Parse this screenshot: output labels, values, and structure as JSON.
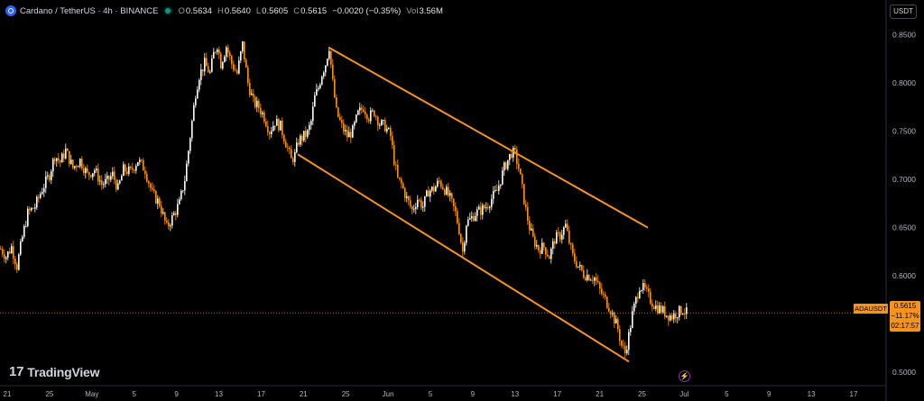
{
  "header": {
    "title": "Cardano / TetherUS · 4h · BINANCE",
    "open_label": "O",
    "open": "0.5634",
    "high_label": "H",
    "high": "0.5640",
    "low_label": "L",
    "low": "0.5605",
    "close_label": "C",
    "close": "0.5615",
    "change": "−0.0020 (−0.35%)",
    "vol_label": "Vol",
    "volume": "3.56M"
  },
  "currency_button": "USDT",
  "price_axis": [
    "0.8500",
    "0.8000",
    "0.7500",
    "0.7000",
    "0.6500",
    "0.6000",
    "0.5500",
    "0.5000"
  ],
  "time_axis": [
    "21",
    "25",
    "May",
    "5",
    "9",
    "13",
    "17",
    "21",
    "25",
    "Jun",
    "5",
    "9",
    "13",
    "17",
    "21",
    "25",
    "Jul",
    "5",
    "9",
    "13",
    "17"
  ],
  "symbol_tag": "ADAUSDT",
  "price_tag": {
    "price": "0.5615",
    "change": "−11.17%",
    "countdown": "02:17:57"
  },
  "brand": "TradingView",
  "brand_mark": "17",
  "bolt_icon": "⚡",
  "colors": {
    "up": "#ffffff",
    "down": "#f7931a",
    "channel": "#f7931a",
    "price_line": "#e65100"
  },
  "chart_data": {
    "type": "candlestick",
    "ylim": [
      0.487,
      0.873
    ],
    "last_price": 0.5615,
    "price_path": [
      [
        0,
        0.628
      ],
      [
        6,
        0.62
      ],
      [
        12,
        0.63
      ],
      [
        18,
        0.61
      ],
      [
        24,
        0.64
      ],
      [
        30,
        0.665
      ],
      [
        38,
        0.672
      ],
      [
        46,
        0.69
      ],
      [
        54,
        0.705
      ],
      [
        60,
        0.725
      ],
      [
        66,
        0.718
      ],
      [
        72,
        0.73
      ],
      [
        80,
        0.712
      ],
      [
        88,
        0.72
      ],
      [
        96,
        0.705
      ],
      [
        104,
        0.71
      ],
      [
        112,
        0.695
      ],
      [
        118,
        0.698
      ],
      [
        124,
        0.705
      ],
      [
        130,
        0.69
      ],
      [
        136,
        0.71
      ],
      [
        144,
        0.708
      ],
      [
        152,
        0.72
      ],
      [
        160,
        0.71
      ],
      [
        168,
        0.685
      ],
      [
        176,
        0.675
      ],
      [
        184,
        0.65
      ],
      [
        190,
        0.66
      ],
      [
        198,
        0.675
      ],
      [
        204,
        0.7
      ],
      [
        208,
        0.73
      ],
      [
        212,
        0.76
      ],
      [
        216,
        0.79
      ],
      [
        220,
        0.808
      ],
      [
        226,
        0.82
      ],
      [
        232,
        0.81
      ],
      [
        236,
        0.83
      ],
      [
        240,
        0.84
      ],
      [
        244,
        0.82
      ],
      [
        250,
        0.838
      ],
      [
        256,
        0.82
      ],
      [
        262,
        0.81
      ],
      [
        268,
        0.84
      ],
      [
        274,
        0.8
      ],
      [
        280,
        0.78
      ],
      [
        286,
        0.775
      ],
      [
        292,
        0.765
      ],
      [
        298,
        0.75
      ],
      [
        304,
        0.76
      ],
      [
        310,
        0.755
      ],
      [
        316,
        0.738
      ],
      [
        322,
        0.72
      ],
      [
        326,
        0.725
      ],
      [
        330,
        0.74
      ],
      [
        336,
        0.745
      ],
      [
        340,
        0.748
      ],
      [
        344,
        0.76
      ],
      [
        348,
        0.785
      ],
      [
        352,
        0.795
      ],
      [
        356,
        0.81
      ],
      [
        360,
        0.82
      ],
      [
        364,
        0.838
      ],
      [
        368,
        0.8
      ],
      [
        372,
        0.77
      ],
      [
        378,
        0.755
      ],
      [
        384,
        0.745
      ],
      [
        390,
        0.75
      ],
      [
        396,
        0.768
      ],
      [
        402,
        0.775
      ],
      [
        408,
        0.765
      ],
      [
        414,
        0.77
      ],
      [
        420,
        0.758
      ],
      [
        426,
        0.755
      ],
      [
        432,
        0.745
      ],
      [
        436,
        0.72
      ],
      [
        440,
        0.7
      ],
      [
        444,
        0.695
      ],
      [
        450,
        0.68
      ],
      [
        456,
        0.668
      ],
      [
        462,
        0.68
      ],
      [
        468,
        0.672
      ],
      [
        474,
        0.688
      ],
      [
        480,
        0.69
      ],
      [
        486,
        0.698
      ],
      [
        492,
        0.69
      ],
      [
        498,
        0.68
      ],
      [
        504,
        0.665
      ],
      [
        508,
        0.648
      ],
      [
        512,
        0.625
      ],
      [
        516,
        0.655
      ],
      [
        520,
        0.658
      ],
      [
        526,
        0.665
      ],
      [
        532,
        0.668
      ],
      [
        538,
        0.672
      ],
      [
        544,
        0.68
      ],
      [
        550,
        0.688
      ],
      [
        554,
        0.7
      ],
      [
        558,
        0.712
      ],
      [
        562,
        0.72
      ],
      [
        566,
        0.728
      ],
      [
        570,
        0.726
      ],
      [
        574,
        0.712
      ],
      [
        578,
        0.69
      ],
      [
        582,
        0.668
      ],
      [
        586,
        0.65
      ],
      [
        590,
        0.638
      ],
      [
        596,
        0.628
      ],
      [
        602,
        0.63
      ],
      [
        608,
        0.62
      ],
      [
        614,
        0.638
      ],
      [
        620,
        0.642
      ],
      [
        626,
        0.652
      ],
      [
        630,
        0.635
      ],
      [
        634,
        0.62
      ],
      [
        640,
        0.61
      ],
      [
        646,
        0.602
      ],
      [
        652,
        0.6
      ],
      [
        658,
        0.598
      ],
      [
        664,
        0.585
      ],
      [
        670,
        0.575
      ],
      [
        676,
        0.565
      ],
      [
        680,
        0.555
      ],
      [
        684,
        0.545
      ],
      [
        688,
        0.528
      ],
      [
        692,
        0.52
      ],
      [
        696,
        0.538
      ],
      [
        700,
        0.56
      ],
      [
        704,
        0.575
      ],
      [
        708,
        0.59
      ],
      [
        714,
        0.585
      ],
      [
        720,
        0.575
      ],
      [
        726,
        0.568
      ],
      [
        732,
        0.565
      ],
      [
        738,
        0.56
      ],
      [
        744,
        0.558
      ],
      [
        750,
        0.562
      ],
      [
        756,
        0.565
      ],
      [
        760,
        0.5615
      ]
    ],
    "channel": {
      "upper": [
        [
          0.837,
          364
        ],
        [
          0.65,
          718
        ]
      ],
      "lower": [
        [
          0.726,
          330
        ],
        [
          0.511,
          697
        ]
      ]
    }
  }
}
